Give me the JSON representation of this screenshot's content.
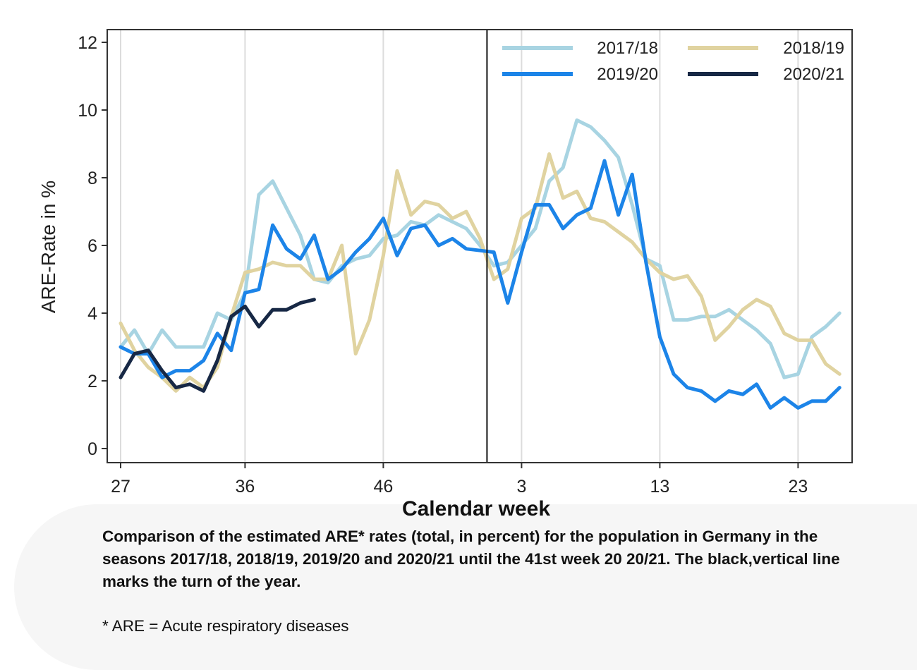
{
  "chart_data": {
    "type": "line",
    "xlabel": "Calendar week",
    "ylabel": "ARE-Rate in %",
    "ylim": [
      0,
      12.5
    ],
    "yticks": [
      0,
      2,
      4,
      6,
      8,
      10,
      12
    ],
    "x_tick_labels": [
      "27",
      "36",
      "46",
      "3",
      "13",
      "23"
    ],
    "x_tick_positions": [
      0,
      9,
      19,
      29,
      39,
      49
    ],
    "turn_of_year_after_index": 26,
    "grid": "vertical",
    "legend": "top-right",
    "series": [
      {
        "name": "2017/18",
        "color": "#a8d4e2",
        "values": [
          3.0,
          3.5,
          2.8,
          3.5,
          3.0,
          3.0,
          3.0,
          4.0,
          3.8,
          4.6,
          7.5,
          7.9,
          7.1,
          6.3,
          5.0,
          4.9,
          5.4,
          5.6,
          5.7,
          6.2,
          6.3,
          6.7,
          6.6,
          6.9,
          6.7,
          6.5,
          6.0,
          5.4,
          5.5,
          6.0,
          6.5,
          7.9,
          8.3,
          9.7,
          9.5,
          9.1,
          8.6,
          7.2,
          5.6,
          5.4,
          3.8,
          3.8,
          3.9,
          3.9,
          4.1,
          3.8,
          3.5,
          3.1,
          2.1,
          2.2,
          3.3,
          3.6,
          4.0
        ]
      },
      {
        "name": "2018/19",
        "color": "#e0d3a0",
        "values": [
          3.7,
          2.9,
          2.4,
          2.1,
          1.7,
          2.1,
          1.8,
          2.4,
          3.9,
          5.2,
          5.3,
          5.5,
          5.4,
          5.4,
          5.0,
          5.0,
          6.0,
          2.8,
          3.8,
          5.7,
          8.2,
          6.9,
          7.3,
          7.2,
          6.8,
          7.0,
          6.2,
          5.0,
          5.3,
          6.8,
          7.1,
          8.7,
          7.4,
          7.6,
          6.8,
          6.7,
          6.4,
          6.1,
          5.6,
          5.2,
          5.0,
          5.1,
          4.5,
          3.2,
          3.6,
          4.1,
          4.4,
          4.2,
          3.4,
          3.2,
          3.2,
          2.5,
          2.2
        ]
      },
      {
        "name": "2019/20",
        "color": "#1c84e8",
        "values": [
          3.0,
          2.8,
          2.8,
          2.1,
          2.3,
          2.3,
          2.6,
          3.4,
          2.9,
          4.6,
          4.7,
          6.6,
          5.9,
          5.6,
          6.3,
          5.0,
          5.3,
          5.8,
          6.2,
          6.8,
          5.7,
          6.5,
          6.6,
          6.0,
          6.2,
          5.9,
          5.85,
          5.8,
          4.3,
          5.8,
          7.2,
          7.2,
          6.5,
          6.9,
          7.1,
          8.5,
          6.9,
          8.1,
          5.5,
          3.3,
          2.2,
          1.8,
          1.7,
          1.4,
          1.7,
          1.6,
          1.9,
          1.2,
          1.5,
          1.2,
          1.4,
          1.4,
          1.8
        ]
      },
      {
        "name": "2020/21",
        "color": "#172845",
        "values": [
          2.1,
          2.8,
          2.9,
          2.3,
          1.8,
          1.9,
          1.7,
          2.6,
          3.9,
          4.2,
          3.6,
          4.1,
          4.1,
          4.3,
          4.4
        ]
      }
    ]
  },
  "caption": "Comparison of the estimated ARE* rates (total, in percent) for the population in Germany in the seasons 2017/18, 2018/19, 2019/20 and 2020/21 until the 41st week 20 20/21. The black,vertical line marks the turn of the year.",
  "footnote": "* ARE = Acute respiratory diseases"
}
